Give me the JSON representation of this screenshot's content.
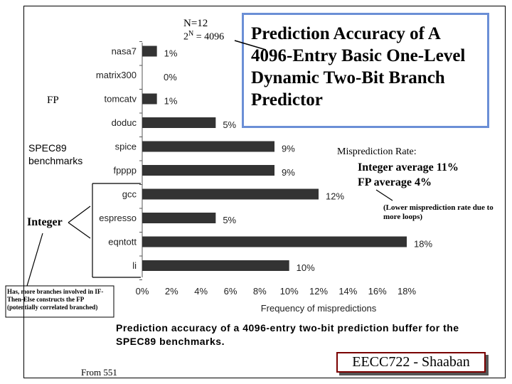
{
  "slide": {
    "title": "Prediction Accuracy of A 4096-Entry Basic One-Level Dynamic Two-Bit Branch Predictor",
    "n_label": "N=12",
    "n_eq_base": "2",
    "n_eq_sup": "N",
    "n_eq_rest": " = 4096",
    "fp_label": "FP",
    "spec_label_line1": "SPEC89",
    "spec_label_line2": "benchmarks",
    "integer_label": "Integer",
    "integer_note": "Has, more branches involved in IF-Then-Else constructs the FP (potentially correlated branched)",
    "misprediction_title": "Misprediction Rate:",
    "integer_average": "Integer average  11%",
    "fp_average": "FP average  4%",
    "loops_note": "(Lower misprediction rate due to more loops)",
    "caption": "Prediction accuracy of a 4096-entry two-bit prediction buffer for the SPEC89 benchmarks.",
    "from_label": "From 551",
    "brand": "EECC722 - Shaaban"
  },
  "colors": {
    "bar": "#333333",
    "title_border": "#6b8fd6",
    "brand_border": "#7a0000"
  },
  "chart_data": {
    "type": "bar",
    "orientation": "horizontal",
    "categories": [
      "nasa7",
      "matrix300",
      "tomcatv",
      "doduc",
      "spice",
      "fpppp",
      "gcc",
      "espresso",
      "eqntott",
      "li"
    ],
    "values": [
      1,
      0,
      1,
      5,
      9,
      9,
      12,
      5,
      18,
      10
    ],
    "value_labels": [
      "1%",
      "0%",
      "1%",
      "5%",
      "9%",
      "9%",
      "12%",
      "5%",
      "18%",
      "10%"
    ],
    "x_ticks": [
      "0%",
      "2%",
      "4%",
      "6%",
      "8%",
      "10%",
      "12%",
      "14%",
      "16%",
      "18%"
    ],
    "xlim": [
      0,
      18
    ],
    "xlabel": "Frequency of mispredictions",
    "groups": [
      {
        "name": "FP",
        "categories": [
          "nasa7",
          "matrix300",
          "tomcatv",
          "doduc",
          "spice",
          "fpppp"
        ]
      },
      {
        "name": "Integer",
        "categories": [
          "gcc",
          "espresso",
          "eqntott",
          "li"
        ]
      }
    ],
    "grid": false
  }
}
